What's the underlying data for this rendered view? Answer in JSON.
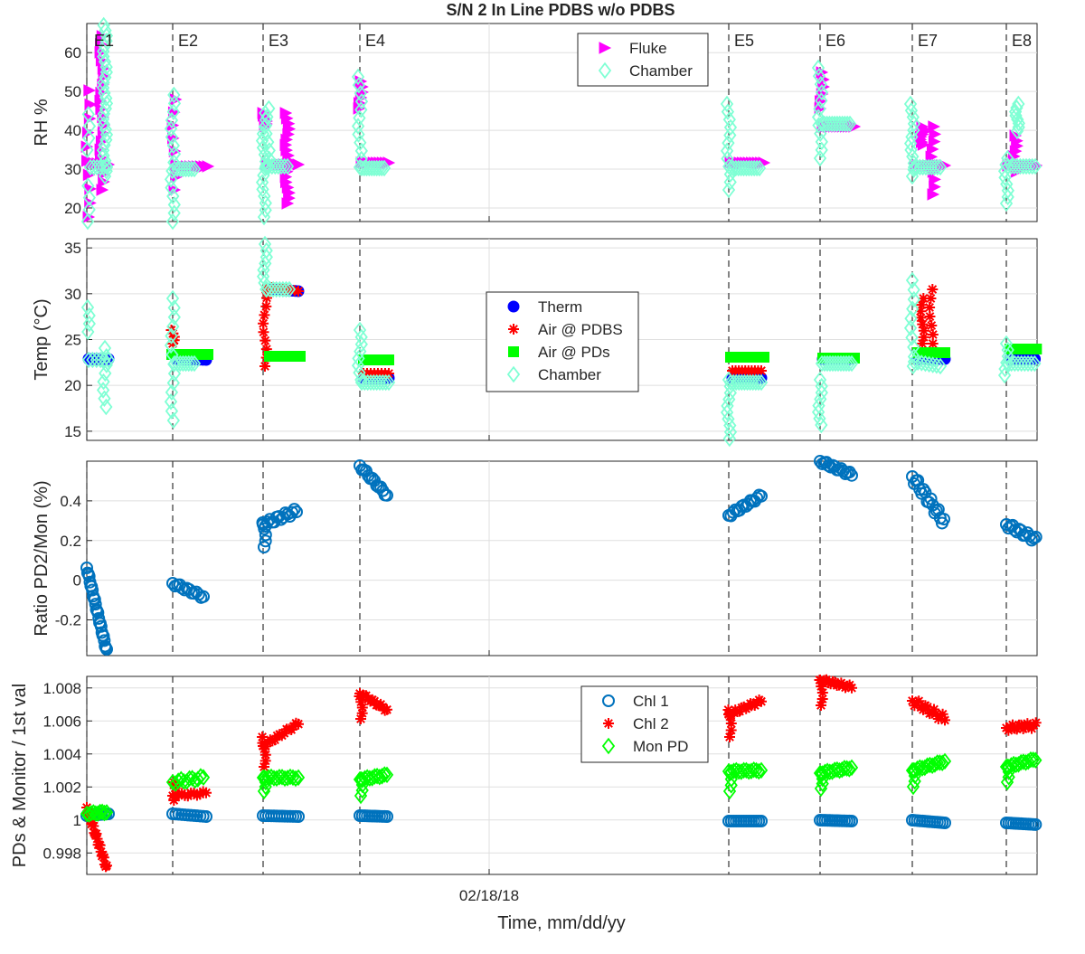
{
  "title": "S/N 2 In Line PDBS w/o PDBS",
  "xlabel": "Time, mm/dd/yy",
  "x_tick_label": "02/18/18",
  "events": [
    "E1",
    "E2",
    "E3",
    "E4",
    "E5",
    "E6",
    "E7",
    "E8"
  ],
  "chart_data": [
    {
      "type": "scatter",
      "name": "rh",
      "ylabel": "RH %",
      "ylim": [
        16.5,
        67.5
      ],
      "yticks": [
        20,
        30,
        40,
        50,
        60
      ],
      "legend": "top-right",
      "grid": true,
      "series": [
        {
          "name": "Fluke",
          "color": "#ff00ff",
          "marker": "triangle-right"
        },
        {
          "name": "Chamber",
          "color": "#7fffd4",
          "marker": "diamond"
        }
      ]
    },
    {
      "type": "scatter",
      "name": "temp",
      "ylabel": "Temp (°C)",
      "ylim": [
        14,
        36
      ],
      "yticks": [
        15,
        20,
        25,
        30,
        35
      ],
      "legend": "center",
      "grid": true,
      "series": [
        {
          "name": "Therm",
          "color": "#0000ff",
          "marker": "circle-filled"
        },
        {
          "name": "Air @ PDBS",
          "color": "#ff0000",
          "marker": "asterisk"
        },
        {
          "name": "Air @ PDs",
          "color": "#00ff00",
          "marker": "square-filled"
        },
        {
          "name": "Chamber",
          "color": "#7fffd4",
          "marker": "diamond"
        }
      ]
    },
    {
      "type": "scatter",
      "name": "ratio",
      "ylabel": "Ratio PD2/Mon (%)",
      "ylim": [
        -0.38,
        0.6
      ],
      "yticks": [
        -0.2,
        0,
        0.2,
        0.4
      ],
      "grid": true,
      "series": [
        {
          "color": "#0072bd",
          "marker": "circle"
        }
      ]
    },
    {
      "type": "scatter",
      "name": "pds",
      "ylabel": "PDs & Monitor / 1st val",
      "ylim": [
        0.9967,
        1.0087
      ],
      "yticks": [
        0.998,
        1,
        1.002,
        1.004,
        1.006,
        1.008
      ],
      "ytick_labels": [
        "0.998",
        "1",
        "1.002",
        "1.004",
        "1.006",
        "1.008"
      ],
      "legend": "top-right",
      "grid": true,
      "series": [
        {
          "name": "Chl 1",
          "color": "#0072bd",
          "marker": "circle"
        },
        {
          "name": "Chl 2",
          "color": "#ff0000",
          "marker": "asterisk"
        },
        {
          "name": "Mon PD",
          "color": "#00ff00",
          "marker": "diamond"
        }
      ]
    }
  ]
}
